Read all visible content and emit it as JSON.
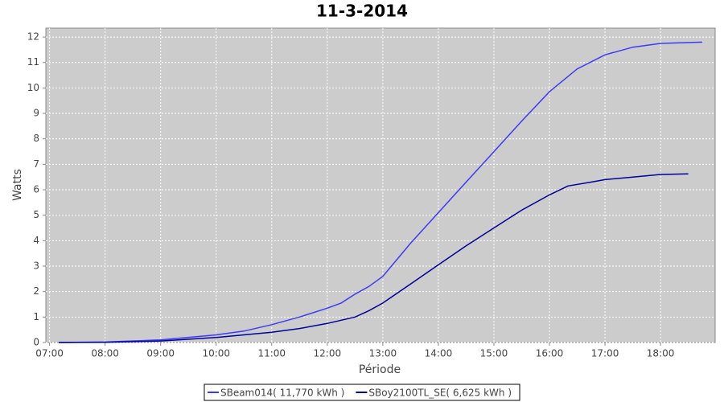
{
  "chart_data": {
    "type": "line",
    "title": "11-3-2014",
    "x_label": "Période",
    "y_label": "Watts",
    "xlim": [
      "06:56",
      "18:59"
    ],
    "xticks": [
      "07:00",
      "08:00",
      "09:00",
      "10:00",
      "11:00",
      "12:00",
      "13:00",
      "14:00",
      "15:00",
      "16:00",
      "17:00",
      "18:00"
    ],
    "ylim": [
      0,
      12.35
    ],
    "yticks": [
      0,
      1,
      2,
      3,
      4,
      5,
      6,
      7,
      8,
      9,
      10,
      11,
      12
    ],
    "grid": true,
    "series": [
      {
        "name": "SBeam014( 11,770 kWh )",
        "color": "#3b3bf5",
        "x": [
          "07:10",
          "08:00",
          "09:00",
          "10:00",
          "10:30",
          "11:00",
          "11:30",
          "12:00",
          "12:15",
          "12:30",
          "12:45",
          "13:00",
          "13:30",
          "14:00",
          "14:30",
          "15:00",
          "15:30",
          "16:00",
          "16:30",
          "17:00",
          "17:30",
          "18:00",
          "18:45"
        ],
        "values": [
          0,
          0.02,
          0.1,
          0.3,
          0.45,
          0.7,
          1.0,
          1.35,
          1.55,
          1.9,
          2.2,
          2.6,
          3.9,
          5.1,
          6.3,
          7.5,
          8.7,
          9.85,
          10.75,
          11.3,
          11.6,
          11.75,
          11.8
        ]
      },
      {
        "name": "SBoy2100TL_SE( 6,625 kWh )",
        "color": "#00009a",
        "x": [
          "07:10",
          "08:00",
          "09:00",
          "10:00",
          "11:00",
          "11:30",
          "12:00",
          "12:30",
          "12:45",
          "13:00",
          "13:30",
          "14:00",
          "14:30",
          "15:00",
          "15:30",
          "16:00",
          "16:20",
          "16:45",
          "17:00",
          "17:30",
          "18:00",
          "18:30"
        ],
        "values": [
          0,
          0.01,
          0.06,
          0.2,
          0.4,
          0.55,
          0.75,
          1.0,
          1.25,
          1.55,
          2.3,
          3.05,
          3.8,
          4.5,
          5.2,
          5.8,
          6.15,
          6.3,
          6.4,
          6.5,
          6.6,
          6.625
        ]
      }
    ]
  }
}
